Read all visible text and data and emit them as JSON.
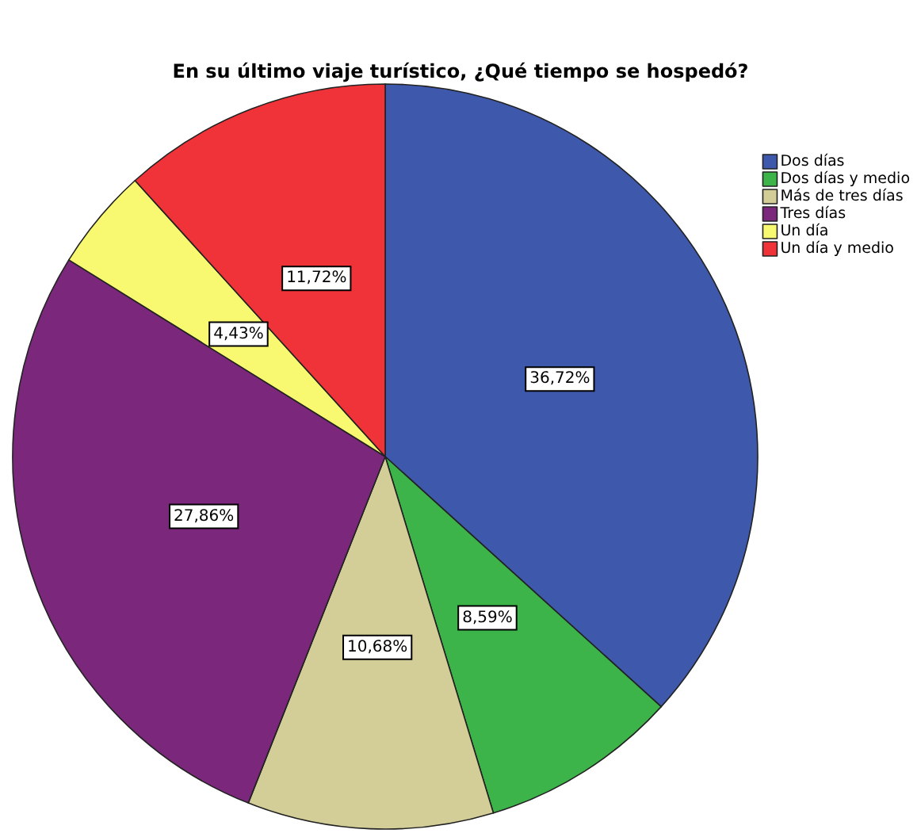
{
  "chart_data": {
    "type": "pie",
    "title": "En su último viaje turístico, ¿Qué tiempo se hospedó?",
    "categories": [
      "Dos días",
      "Dos días y medio",
      "Más de tres días",
      "Tres días",
      "Un día",
      "Un día y medio"
    ],
    "values": [
      36.72,
      8.59,
      10.68,
      27.86,
      4.43,
      11.72
    ],
    "value_labels": [
      "36,72%",
      "8,59%",
      "10,68%",
      "27,86%",
      "4,43%",
      "11,72%"
    ],
    "colors": [
      "#3e58ac",
      "#3cb44a",
      "#d3ce97",
      "#7b277b",
      "#f9f871",
      "#ef3338"
    ],
    "legend": "top right"
  }
}
